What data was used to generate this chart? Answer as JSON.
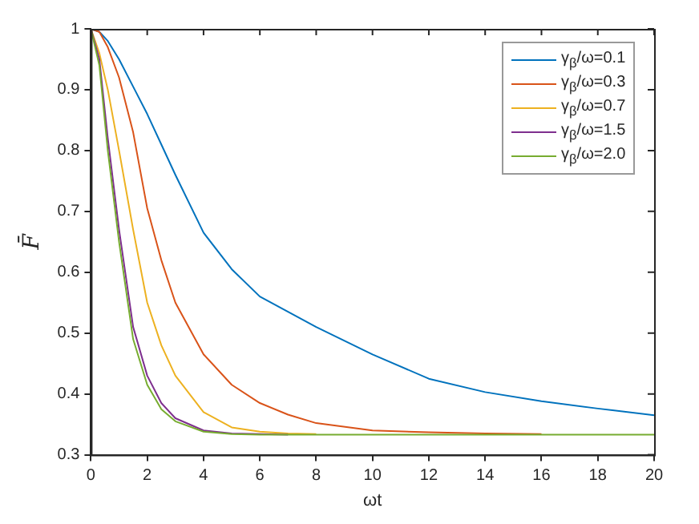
{
  "chart_data": {
    "type": "line",
    "xlabel": "ωt",
    "ylabel": "F̄",
    "x": [
      0,
      0.3,
      0.6,
      1,
      1.5,
      2,
      2.5,
      3,
      4,
      5,
      6,
      7,
      8,
      10,
      12,
      14,
      16,
      18,
      20
    ],
    "xlim": [
      0,
      20
    ],
    "xticks": [
      0,
      2,
      4,
      6,
      8,
      10,
      12,
      14,
      16,
      18,
      20
    ],
    "ylim": [
      0.3,
      1
    ],
    "yticks": [
      0.3,
      0.4,
      0.5,
      0.6,
      0.7,
      0.8,
      0.9,
      1
    ],
    "grid": false,
    "legend": "top right",
    "marker": "none",
    "line_style": "solid",
    "series": [
      {
        "name": "γ$_{β}$/ω=0.1",
        "color": "#0072bd",
        "values": [
          1,
          0.995,
          0.98,
          0.95,
          0.905,
          0.86,
          0.81,
          0.76,
          0.665,
          0.605,
          0.56,
          0.535,
          0.51,
          0.465,
          0.425,
          0.403,
          0.388,
          0.376,
          0.365
        ]
      },
      {
        "name": "γ$_{β}$/ω=0.3",
        "color": "#d95319",
        "values": [
          1,
          0.995,
          0.97,
          0.92,
          0.83,
          0.705,
          0.62,
          0.55,
          0.465,
          0.415,
          0.385,
          0.366,
          0.352,
          0.34,
          0.337,
          0.335,
          0.334,
          null,
          null
        ]
      },
      {
        "name": "γ$_{β}$/ω=0.7",
        "color": "#edb120",
        "values": [
          1,
          0.96,
          0.9,
          0.8,
          0.67,
          0.55,
          0.48,
          0.43,
          0.37,
          0.345,
          0.338,
          0.335,
          0.334,
          null,
          null,
          null,
          null,
          null,
          null
        ]
      },
      {
        "name": "γ$_{β}$/ω=1.5",
        "color": "#7e2f8e",
        "values": [
          1,
          0.95,
          0.82,
          0.67,
          0.51,
          0.43,
          0.385,
          0.36,
          0.34,
          0.335,
          0.334,
          0.333,
          null,
          null,
          null,
          null,
          null,
          null,
          null
        ]
      },
      {
        "name": "γ$_{β}$/ω=2.0",
        "color": "#77ac30",
        "values": [
          1,
          0.94,
          0.8,
          0.65,
          0.49,
          0.415,
          0.375,
          0.355,
          0.338,
          0.334,
          0.333,
          0.333,
          0.333,
          0.333,
          0.333,
          0.333,
          0.333,
          0.333,
          0.333
        ]
      }
    ]
  }
}
